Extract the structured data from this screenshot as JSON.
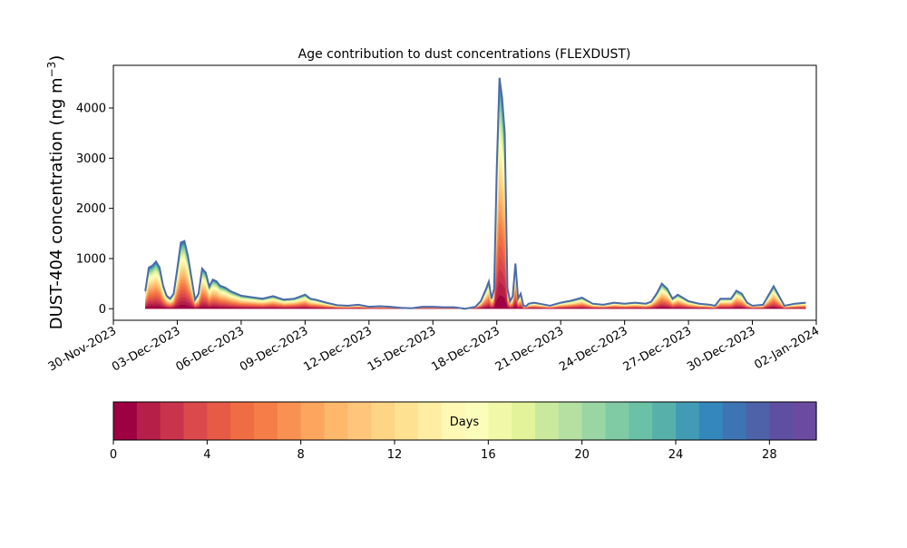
{
  "chart_data": [
    {
      "type": "area",
      "title": "Age contribution to dust concentrations (FLEXDUST)",
      "xlabel": "",
      "ylabel_text": "DUST-404 concentration (ng m",
      "ylabel_unit_exp": "−3",
      "ylabel_close": ")",
      "ylim": [
        -230,
        4850
      ],
      "xlim": [
        "2023-11-30T00:00",
        "2024-01-02T00:00"
      ],
      "yticks": [
        0,
        1000,
        2000,
        3000,
        4000
      ],
      "xticks": [
        "30-Nov-2023",
        "03-Dec-2023",
        "06-Dec-2023",
        "09-Dec-2023",
        "12-Dec-2023",
        "15-Dec-2023",
        "18-Dec-2023",
        "21-Dec-2023",
        "24-Dec-2023",
        "27-Dec-2023",
        "30-Dec-2023",
        "02-Jan-2024"
      ],
      "grid": false,
      "stack_by": "age (days)",
      "total_line_color": "#4c6ba8",
      "series_total": {
        "x": [
          "2023-12-01T12:00",
          "2023-12-01T16:00",
          "2023-12-01T20:00",
          "2023-12-02T00:00",
          "2023-12-02T04:00",
          "2023-12-02T08:00",
          "2023-12-02T12:00",
          "2023-12-02T16:00",
          "2023-12-02T20:00",
          "2023-12-03T00:00",
          "2023-12-03T04:00",
          "2023-12-03T08:00",
          "2023-12-03T12:00",
          "2023-12-03T16:00",
          "2023-12-03T20:00",
          "2023-12-04T00:00",
          "2023-12-04T04:00",
          "2023-12-04T08:00",
          "2023-12-04T12:00",
          "2023-12-04T16:00",
          "2023-12-04T20:00",
          "2023-12-05T00:00",
          "2023-12-05T06:00",
          "2023-12-05T12:00",
          "2023-12-06T00:00",
          "2023-12-06T12:00",
          "2023-12-07T00:00",
          "2023-12-07T12:00",
          "2023-12-08T00:00",
          "2023-12-08T12:00",
          "2023-12-09T00:00",
          "2023-12-09T06:00",
          "2023-12-09T12:00",
          "2023-12-10T00:00",
          "2023-12-10T12:00",
          "2023-12-11T00:00",
          "2023-12-11T12:00",
          "2023-12-12T00:00",
          "2023-12-12T12:00",
          "2023-12-13T00:00",
          "2023-12-13T12:00",
          "2023-12-14T00:00",
          "2023-12-14T12:00",
          "2023-12-15T00:00",
          "2023-12-15T12:00",
          "2023-12-16T00:00",
          "2023-12-16T12:00",
          "2023-12-17T00:00",
          "2023-12-17T06:00",
          "2023-12-17T12:00",
          "2023-12-17T15:00",
          "2023-12-17T18:00",
          "2023-12-17T21:00",
          "2023-12-18T00:00",
          "2023-12-18T03:00",
          "2023-12-18T06:00",
          "2023-12-18T09:00",
          "2023-12-18T12:00",
          "2023-12-18T15:00",
          "2023-12-18T18:00",
          "2023-12-18T21:00",
          "2023-12-19T00:00",
          "2023-12-19T03:00",
          "2023-12-19T06:00",
          "2023-12-19T09:00",
          "2023-12-19T12:00",
          "2023-12-19T18:00",
          "2023-12-20T00:00",
          "2023-12-20T12:00",
          "2023-12-21T00:00",
          "2023-12-21T12:00",
          "2023-12-22T00:00",
          "2023-12-22T12:00",
          "2023-12-23T00:00",
          "2023-12-23T12:00",
          "2023-12-24T00:00",
          "2023-12-24T12:00",
          "2023-12-25T00:00",
          "2023-12-25T06:00",
          "2023-12-25T12:00",
          "2023-12-25T18:00",
          "2023-12-26T00:00",
          "2023-12-26T06:00",
          "2023-12-26T12:00",
          "2023-12-27T00:00",
          "2023-12-27T12:00",
          "2023-12-28T00:00",
          "2023-12-28T06:00",
          "2023-12-28T12:00",
          "2023-12-29T00:00",
          "2023-12-29T06:00",
          "2023-12-29T12:00",
          "2023-12-29T18:00",
          "2023-12-30T00:00",
          "2023-12-30T12:00",
          "2023-12-31T00:00",
          "2023-12-31T12:00",
          "2024-01-01T00:00",
          "2024-01-01T12:00"
        ],
        "y": [
          350,
          820,
          860,
          940,
          820,
          460,
          260,
          200,
          300,
          800,
          1320,
          1350,
          1050,
          620,
          180,
          300,
          800,
          720,
          440,
          580,
          550,
          460,
          420,
          350,
          260,
          230,
          200,
          250,
          180,
          200,
          280,
          200,
          180,
          120,
          70,
          60,
          80,
          40,
          50,
          40,
          20,
          10,
          40,
          40,
          30,
          30,
          0,
          40,
          150,
          400,
          540,
          200,
          400,
          2800,
          4600,
          4200,
          3500,
          400,
          150,
          250,
          900,
          200,
          300,
          60,
          50,
          100,
          120,
          100,
          60,
          120,
          160,
          220,
          100,
          80,
          120,
          100,
          120,
          100,
          140,
          300,
          500,
          400,
          200,
          280,
          150,
          100,
          80,
          60,
          200,
          200,
          360,
          300,
          120,
          60,
          80,
          450,
          60,
          100,
          120
        ]
      },
      "colorbar": {
        "label": "Days",
        "range": [
          0,
          30
        ],
        "ticks": [
          0,
          4,
          8,
          12,
          16,
          20,
          24,
          28
        ],
        "colormap": "Spectral",
        "levels": [
          "#9e0142",
          "#b51f48",
          "#c9344c",
          "#dc494c",
          "#e75a46",
          "#f06d43",
          "#f57e48",
          "#f99153",
          "#fca55f",
          "#fdb86c",
          "#fec67a",
          "#fed485",
          "#fee292",
          "#feeda3",
          "#fef8b4",
          "#fbfdba",
          "#f1f9a9",
          "#e2f399",
          "#cbe99d",
          "#b4e0a2",
          "#9ad5a4",
          "#80cba4",
          "#6bc1a5",
          "#57b0aa",
          "#429bb4",
          "#3387bb",
          "#3d74b3",
          "#4e62aa",
          "#5f4fa3",
          "#6b4ba0"
        ]
      }
    }
  ]
}
